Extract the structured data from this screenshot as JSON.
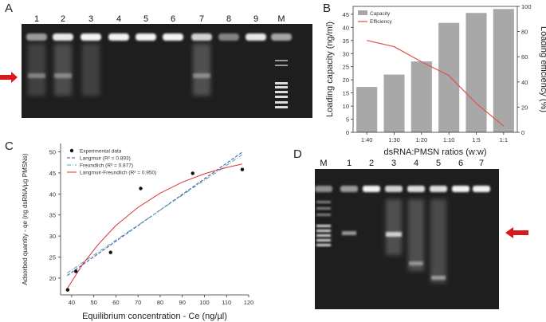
{
  "panels": {
    "a": {
      "letter": "A",
      "lanes": [
        "1",
        "2",
        "3",
        "4",
        "5",
        "6",
        "7",
        "8",
        "9",
        "M"
      ]
    },
    "b": {
      "letter": "B"
    },
    "c": {
      "letter": "C"
    },
    "d": {
      "letter": "D",
      "lanes": [
        "M",
        "1",
        "2",
        "3",
        "4",
        "5",
        "6",
        "7"
      ]
    }
  },
  "colors": {
    "arrow": "#d7191c",
    "gel": "#1c1c1c",
    "bar": "#a8a8a8",
    "efficiency": "#e0504a",
    "langmuir": "#3a4bb0",
    "freundlich": "#4aa9a0",
    "lf": "#d93535"
  },
  "chart_data": [
    {
      "type": "bar",
      "panel": "B",
      "categories": [
        "1:40",
        "1:30",
        "1:20",
        "1:10",
        "1:5",
        "1:1"
      ],
      "xlabel": "dsRNA:PMSN ratios (w:w)",
      "ylabel": "Loading capacity (ng/ml)",
      "y2label": "Loading efficiency (%)",
      "ylim": [
        0,
        48
      ],
      "y2lim": [
        0,
        100
      ],
      "yticks": [
        0,
        5,
        10,
        15,
        20,
        25,
        30,
        35,
        40,
        45
      ],
      "y2ticks": [
        0,
        20,
        40,
        60,
        80,
        100
      ],
      "legend_position": "top-left",
      "series": [
        {
          "name": "Capacity",
          "kind": "bar",
          "axis": "left",
          "values": [
            17.3,
            22.0,
            27.0,
            41.7,
            45.5,
            47.0
          ]
        },
        {
          "name": "Efficiency",
          "kind": "line",
          "axis": "right",
          "values": [
            73,
            68,
            56,
            45,
            23,
            5
          ]
        }
      ]
    },
    {
      "type": "scatter",
      "panel": "C",
      "xlabel": "Equilibrium concentration - Ce (ng/µl)",
      "ylabel": "Adsorbed quantity - qe (ng dsRNA/µg PMSNs)",
      "xlim": [
        35,
        120
      ],
      "ylim": [
        16,
        52
      ],
      "xticks": [
        40,
        50,
        60,
        70,
        80,
        90,
        100,
        110,
        120
      ],
      "yticks": [
        20,
        25,
        30,
        35,
        40,
        45,
        50
      ],
      "legend_position": "top-left",
      "series": [
        {
          "name": "Experimental data",
          "kind": "points",
          "x": [
            38.2,
            41.9,
            57.6,
            71.2,
            94.7,
            117.1
          ],
          "y": [
            17.2,
            21.6,
            26.1,
            41.3,
            44.9,
            45.8
          ]
        },
        {
          "name": "Langmuir (R² = 0.893)",
          "kind": "line",
          "style": "dashed",
          "x": [
            38,
            117
          ],
          "y": [
            20.6,
            49.9
          ]
        },
        {
          "name": "Freundlich (R² = 0.877)",
          "kind": "line",
          "style": "dashdot",
          "x": [
            38,
            117
          ],
          "y": [
            21.2,
            49.3
          ]
        },
        {
          "name": "Langmuir-Freundlich (R² = 0.950)",
          "kind": "line",
          "style": "solid",
          "x": [
            38,
            45,
            52,
            60,
            70,
            80,
            90,
            100,
            110,
            117
          ],
          "y": [
            17.5,
            23.3,
            28.0,
            32.5,
            36.8,
            40.2,
            42.8,
            44.8,
            46.3,
            47.1
          ]
        }
      ]
    }
  ]
}
